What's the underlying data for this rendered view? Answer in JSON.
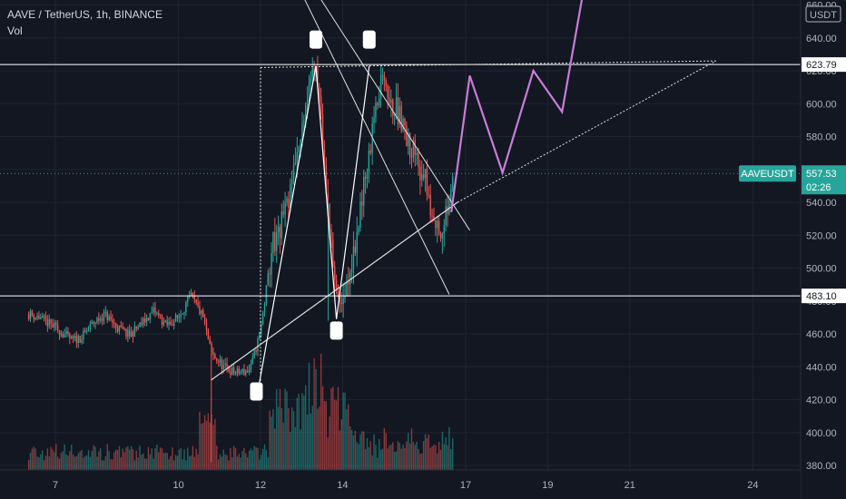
{
  "header": {
    "symbol_line": "AAVE / TetherUS, 1h, BINANCE",
    "indicator": "Vol",
    "currency": "USDT"
  },
  "colors": {
    "background": "#131722",
    "grid": "#1f2430",
    "up": "#26a69a",
    "down": "#ef5350",
    "line": "#ffffff",
    "projection": "#c77dd7",
    "price_tag": "#26a69a"
  },
  "chart_data": {
    "type": "candlestick",
    "symbol": "AAVEUSDT",
    "interval": "1h",
    "ylim": [
      375,
      665
    ],
    "x_range": [
      6.35,
      25
    ],
    "y_ticks": [
      380,
      400,
      420,
      440,
      460,
      480,
      500,
      520,
      540,
      560,
      580,
      600,
      620,
      640,
      660
    ],
    "x_ticks": [
      {
        "label": "7",
        "x": 7
      },
      {
        "label": "10",
        "x": 10
      },
      {
        "label": "12",
        "x": 12
      },
      {
        "label": "14",
        "x": 14
      },
      {
        "label": "17",
        "x": 17
      },
      {
        "label": "19",
        "x": 19
      },
      {
        "label": "21",
        "x": 21
      },
      {
        "label": "24",
        "x": 24
      }
    ],
    "levels": [
      {
        "label": "623.79",
        "value": 623.79
      },
      {
        "label": "483.10",
        "value": 483.1
      }
    ],
    "last_price": {
      "label": "AAVEUSDT",
      "value_label": "557.53",
      "countdown": "02:26",
      "value": 557.53
    },
    "price_path": [
      [
        6.35,
        472
      ],
      [
        6.6,
        470
      ],
      [
        6.85,
        466
      ],
      [
        7.1,
        462
      ],
      [
        7.4,
        456
      ],
      [
        7.65,
        458
      ],
      [
        7.9,
        466
      ],
      [
        8.2,
        472
      ],
      [
        8.5,
        464
      ],
      [
        8.8,
        459
      ],
      [
        9.1,
        466
      ],
      [
        9.4,
        474
      ],
      [
        9.7,
        465
      ],
      [
        10.0,
        470
      ],
      [
        10.3,
        483
      ],
      [
        10.6,
        470
      ],
      [
        10.8,
        448
      ],
      [
        11.1,
        440
      ],
      [
        11.4,
        436
      ],
      [
        11.75,
        438
      ],
      [
        12.0,
        462
      ],
      [
        12.3,
        515
      ],
      [
        12.6,
        532
      ],
      [
        12.85,
        562
      ],
      [
        13.05,
        595
      ],
      [
        13.25,
        615
      ],
      [
        13.35,
        622
      ],
      [
        13.5,
        585
      ],
      [
        13.65,
        535
      ],
      [
        13.8,
        498
      ],
      [
        13.95,
        472
      ],
      [
        14.1,
        488
      ],
      [
        14.3,
        515
      ],
      [
        14.5,
        545
      ],
      [
        14.7,
        578
      ],
      [
        14.85,
        605
      ],
      [
        15.0,
        622
      ],
      [
        15.2,
        600
      ],
      [
        15.4,
        592
      ],
      [
        15.6,
        576
      ],
      [
        15.8,
        566
      ],
      [
        16.0,
        556
      ],
      [
        16.15,
        532
      ],
      [
        16.3,
        524
      ],
      [
        16.45,
        527
      ],
      [
        16.6,
        538
      ],
      [
        16.7,
        557
      ]
    ],
    "volume_range": [
      0,
      100
    ],
    "drawings": {
      "support_trendline": [
        [
          10.8,
          432
        ],
        [
          16.8,
          540
        ]
      ],
      "support_extension": [
        [
          16.8,
          540
        ],
        [
          23.1,
          626
        ]
      ],
      "resistance_dotted": [
        [
          12.0,
          622
        ],
        [
          23.1,
          626
        ]
      ],
      "measure_vertical": [
        [
          12.0,
          427
        ],
        [
          12.0,
          622
        ]
      ],
      "channel_upper": [
        [
          13.25,
          672
        ],
        [
          17.1,
          523
        ]
      ],
      "channel_lower": [
        [
          12.75,
          680
        ],
        [
          16.6,
          484
        ]
      ],
      "zigzag": [
        [
          11.95,
          427
        ],
        [
          13.35,
          623
        ],
        [
          13.85,
          469
        ],
        [
          14.65,
          623
        ]
      ],
      "projection": [
        [
          16.65,
          534
        ],
        [
          17.1,
          617
        ],
        [
          17.9,
          558
        ],
        [
          18.65,
          620
        ],
        [
          19.35,
          595
        ],
        [
          19.95,
          680
        ]
      ],
      "markers": [
        [
          11.9,
          425
        ],
        [
          13.35,
          639
        ],
        [
          13.85,
          462
        ],
        [
          14.65,
          639
        ]
      ]
    }
  }
}
